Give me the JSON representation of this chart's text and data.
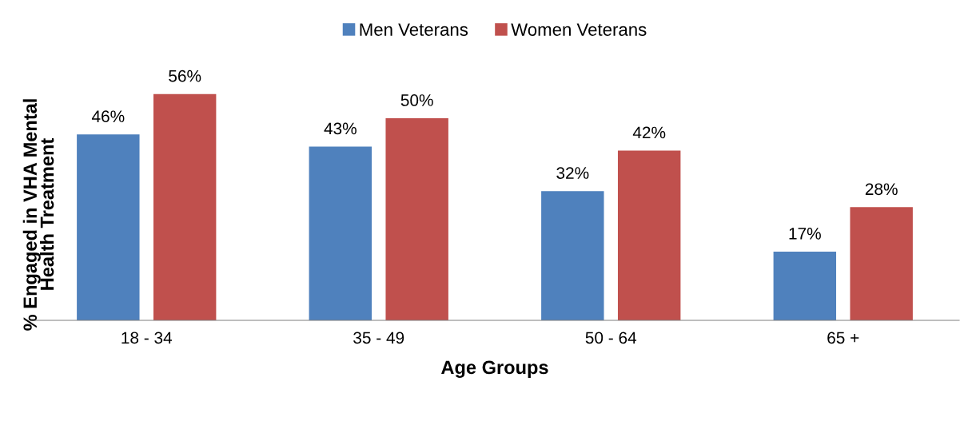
{
  "chart_data": {
    "type": "bar",
    "xlabel": "Age Groups",
    "ylabel": "% Engaged in VHA Mental\nHealth Treatment",
    "categories": [
      "18 - 34",
      "35 - 49",
      "50 - 64",
      "65 +"
    ],
    "series": [
      {
        "name": "Men Veterans",
        "color": "#4f81bd",
        "values": [
          46,
          43,
          32,
          17
        ],
        "value_labels": [
          "46%",
          "43%",
          "32%",
          "17%"
        ]
      },
      {
        "name": "Women Veterans",
        "color": "#c0504d",
        "values": [
          56,
          50,
          42,
          28
        ],
        "value_labels": [
          "56%",
          "50%",
          "42%",
          "28%"
        ]
      }
    ],
    "legend": "top",
    "grid": false,
    "tick_labels": "x"
  }
}
